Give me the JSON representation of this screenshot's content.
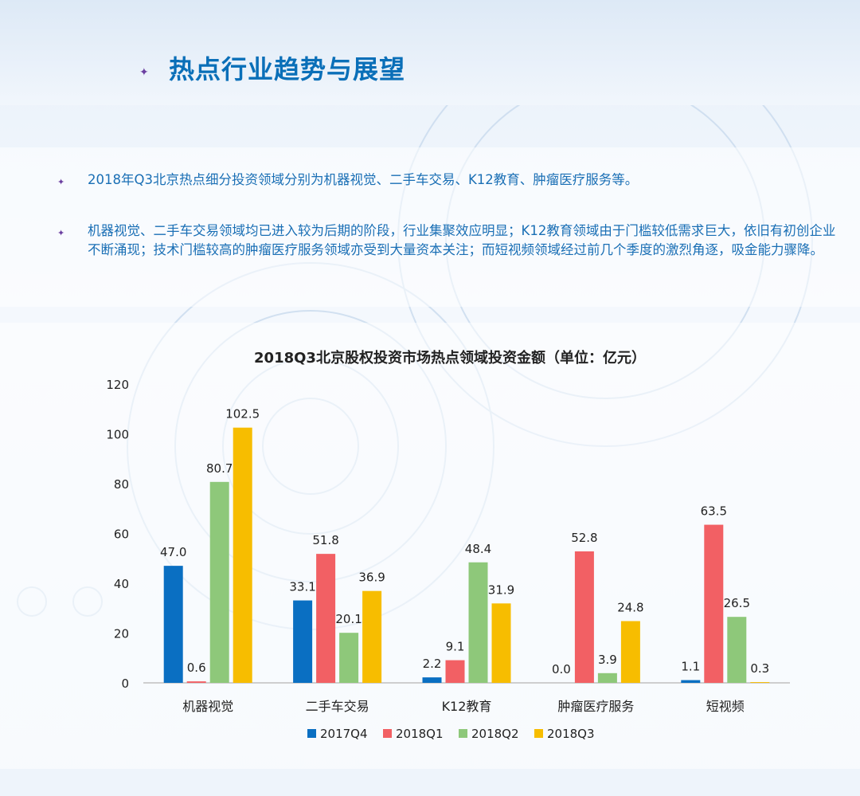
{
  "page": {
    "title": "热点行业趋势与展望",
    "bullets": [
      "2018年Q3北京热点细分投资领域分别为机器视觉、二手车交易、K12教育、肿瘤医疗服务等。",
      "机器视觉、二手车交易领域均已进入较为后期的阶段，行业集聚效应明显；K12教育领域由于门槛较低需求巨大，依旧有初创企业不断涌现；技术门槛较高的肿瘤医疗服务领域亦受到大量资本关注；而短视频领域经过前几个季度的激烈角逐，吸金能力骤降。"
    ]
  },
  "chart_data": {
    "type": "bar",
    "title": "2018Q3北京股权投资市场热点领域投资金额（单位：亿元）",
    "categories": [
      "机器视觉",
      "二手车交易",
      "K12教育",
      "肿瘤医疗服务",
      "短视频"
    ],
    "series": [
      {
        "name": "2017Q4",
        "color": "#0a6fc2",
        "values": [
          47.0,
          33.1,
          2.2,
          0.0,
          1.1
        ]
      },
      {
        "name": "2018Q1",
        "color": "#f26064",
        "values": [
          0.6,
          51.8,
          9.1,
          52.8,
          63.5
        ]
      },
      {
        "name": "2018Q2",
        "color": "#8ec87a",
        "values": [
          80.7,
          20.1,
          48.4,
          3.9,
          26.5
        ]
      },
      {
        "name": "2018Q3",
        "color": "#f7bd00",
        "values": [
          102.5,
          36.9,
          31.9,
          24.8,
          0.3
        ]
      }
    ],
    "yticks": [
      0,
      20,
      40,
      60,
      80,
      100,
      120
    ],
    "ylim": [
      0,
      120
    ],
    "legend": "bottom",
    "grid": false
  }
}
